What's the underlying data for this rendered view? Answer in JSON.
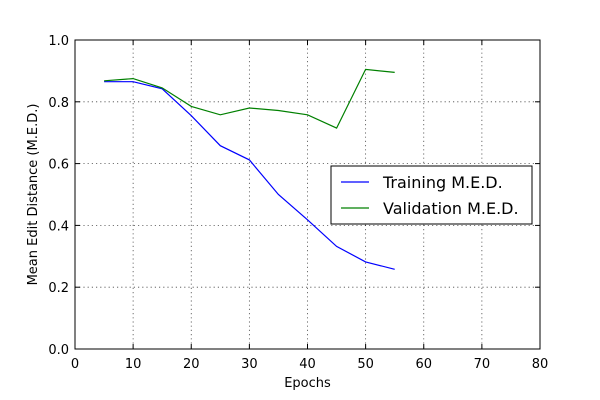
{
  "chart_data": {
    "type": "line",
    "xlabel": "Epochs",
    "ylabel": "Mean Edit Distance (M.E.D.)",
    "xlim": [
      0,
      80
    ],
    "ylim": [
      0.0,
      1.0
    ],
    "x_ticks": [
      0,
      10,
      20,
      30,
      40,
      50,
      60,
      70,
      80
    ],
    "y_ticks": [
      0.0,
      0.2,
      0.4,
      0.6,
      0.8,
      1.0
    ],
    "x_tick_labels": [
      "0",
      "10",
      "20",
      "30",
      "40",
      "50",
      "60",
      "70",
      "80"
    ],
    "y_tick_labels": [
      "0.0",
      "0.2",
      "0.4",
      "0.6",
      "0.8",
      "1.0"
    ],
    "grid": true,
    "legend_position": "right",
    "series": [
      {
        "name": "Training M.E.D.",
        "color": "#0000ff",
        "x": [
          5,
          10,
          15,
          20,
          25,
          30,
          35,
          40,
          45,
          50,
          55
        ],
        "y": [
          0.865,
          0.865,
          0.842,
          0.755,
          0.658,
          0.612,
          0.5,
          0.418,
          0.332,
          0.282,
          0.258
        ]
      },
      {
        "name": "Validation M.E.D.",
        "color": "#008000",
        "x": [
          5,
          10,
          15,
          20,
          25,
          30,
          35,
          40,
          45,
          50,
          55
        ],
        "y": [
          0.868,
          0.875,
          0.845,
          0.785,
          0.758,
          0.78,
          0.772,
          0.758,
          0.715,
          0.905,
          0.895
        ]
      }
    ]
  }
}
